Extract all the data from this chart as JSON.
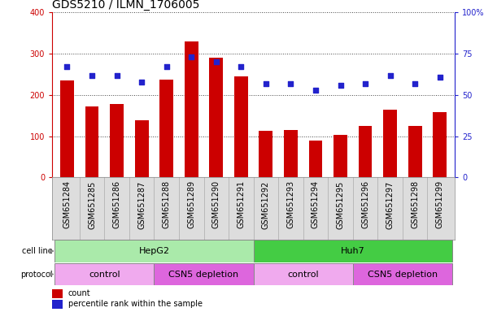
{
  "title": "GDS5210 / ILMN_1706005",
  "samples": [
    "GSM651284",
    "GSM651285",
    "GSM651286",
    "GSM651287",
    "GSM651288",
    "GSM651289",
    "GSM651290",
    "GSM651291",
    "GSM651292",
    "GSM651293",
    "GSM651294",
    "GSM651295",
    "GSM651296",
    "GSM651297",
    "GSM651298",
    "GSM651299"
  ],
  "counts": [
    235,
    172,
    178,
    138,
    237,
    330,
    290,
    246,
    113,
    115,
    90,
    103,
    125,
    165,
    126,
    158
  ],
  "percentile_ranks": [
    67,
    62,
    62,
    58,
    67,
    73,
    70,
    67,
    57,
    57,
    53,
    56,
    57,
    62,
    57,
    61
  ],
  "bar_color": "#cc0000",
  "dot_color": "#2222cc",
  "left_axis_color": "#cc0000",
  "right_axis_color": "#2222cc",
  "ylim_left": [
    0,
    400
  ],
  "ylim_right": [
    0,
    100
  ],
  "yticks_left": [
    0,
    100,
    200,
    300,
    400
  ],
  "yticks_right": [
    0,
    25,
    50,
    75,
    100
  ],
  "yticklabels_right": [
    "0",
    "25",
    "50",
    "75",
    "100%"
  ],
  "cell_line_labels": [
    {
      "label": "HepG2",
      "start": 0,
      "end": 7,
      "color": "#aaeaaa"
    },
    {
      "label": "Huh7",
      "start": 8,
      "end": 15,
      "color": "#44cc44"
    }
  ],
  "protocol_labels": [
    {
      "label": "control",
      "start": 0,
      "end": 3,
      "color": "#f0aaee"
    },
    {
      "label": "CSN5 depletion",
      "start": 4,
      "end": 7,
      "color": "#dd66dd"
    },
    {
      "label": "control",
      "start": 8,
      "end": 11,
      "color": "#f0aaee"
    },
    {
      "label": "CSN5 depletion",
      "start": 12,
      "end": 15,
      "color": "#dd66dd"
    }
  ],
  "legend_count_label": "count",
  "legend_percentile_label": "percentile rank within the sample",
  "background_color": "#ffffff",
  "plot_bg_color": "#ffffff",
  "xtick_bg_color": "#dddddd",
  "grid_color": "#000000",
  "title_fontsize": 10,
  "tick_fontsize": 7,
  "label_fontsize": 8,
  "bar_width": 0.55
}
